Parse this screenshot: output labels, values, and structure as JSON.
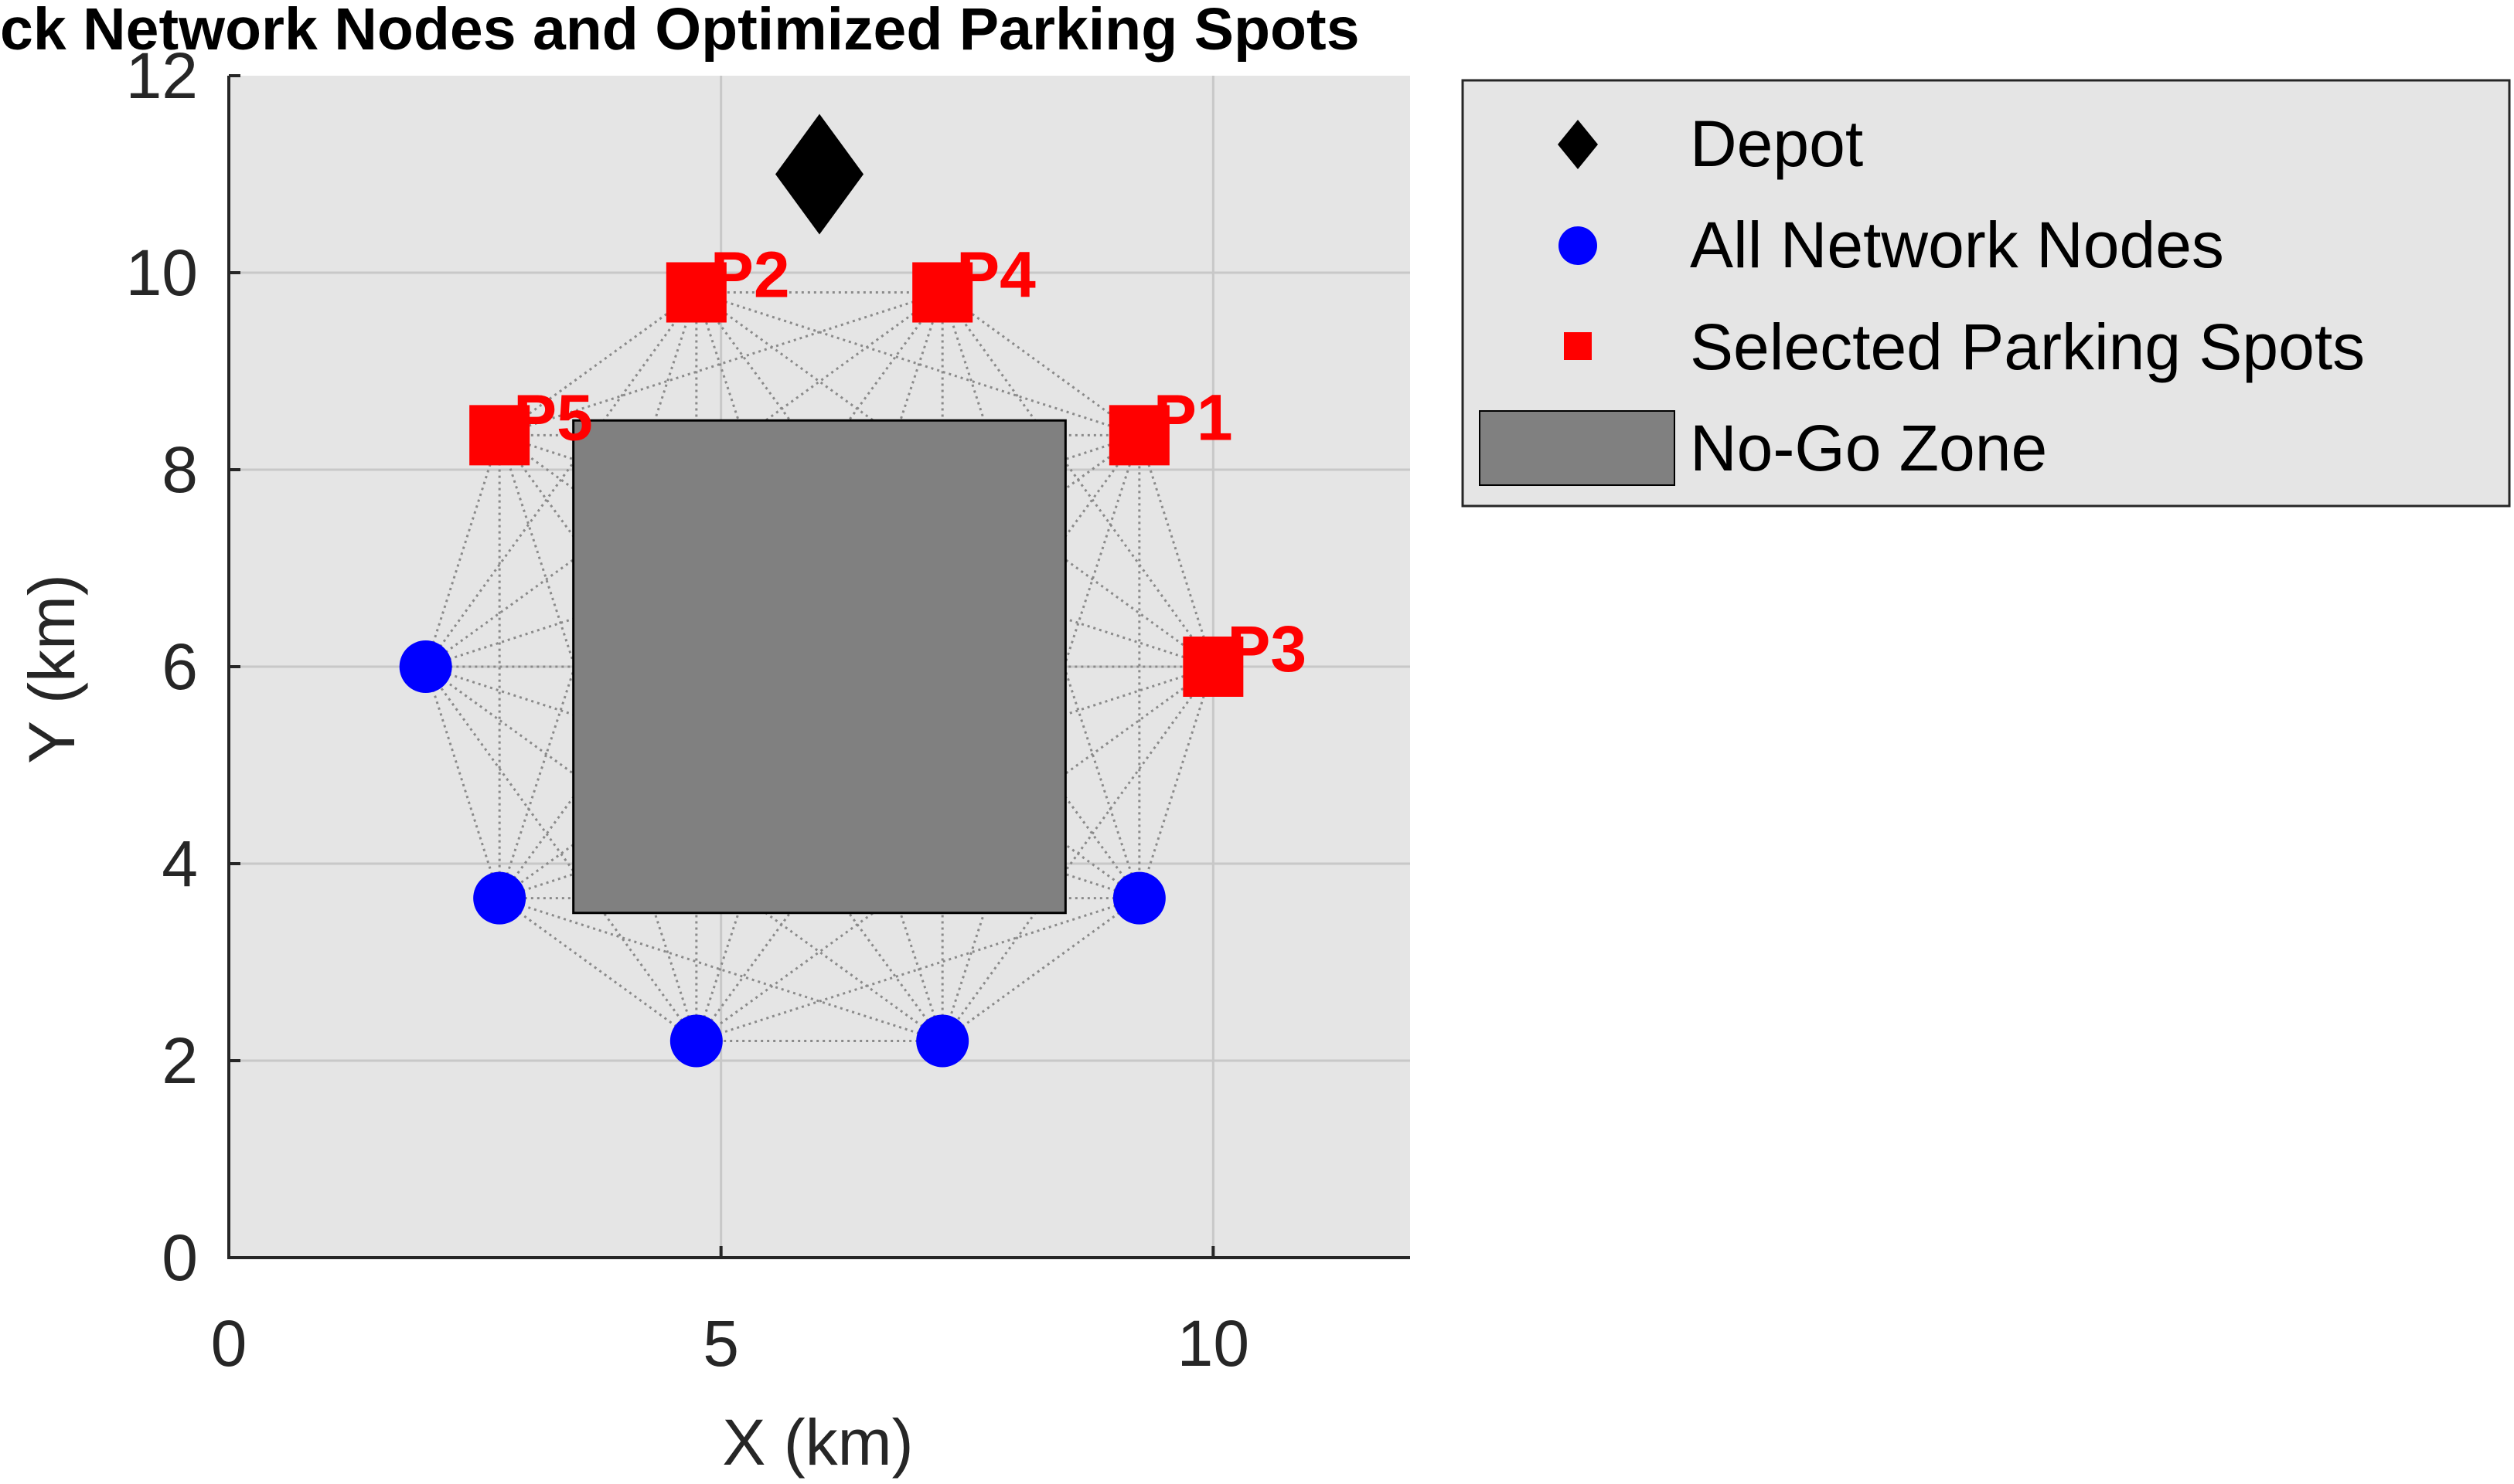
{
  "chart_data": {
    "type": "scatter",
    "title": "ck Network Nodes and Optimized Parking Spots",
    "xlabel": "X (km)",
    "ylabel": "Y (km)",
    "xlim": [
      0,
      12
    ],
    "ylim": [
      0,
      12
    ],
    "xticks": [
      0,
      5,
      10
    ],
    "yticks": [
      0,
      2,
      4,
      6,
      8,
      10,
      12
    ],
    "grid": true,
    "legend_position": "outside-top-right",
    "depot": {
      "x": 6.0,
      "y": 11.0
    },
    "network_nodes": [
      {
        "x": 9.25,
        "y": 8.35
      },
      {
        "x": 10.0,
        "y": 6.0
      },
      {
        "x": 9.25,
        "y": 3.65
      },
      {
        "x": 7.25,
        "y": 2.2
      },
      {
        "x": 4.75,
        "y": 2.2
      },
      {
        "x": 2.75,
        "y": 3.65
      },
      {
        "x": 2.0,
        "y": 6.0
      },
      {
        "x": 2.75,
        "y": 8.35
      },
      {
        "x": 4.75,
        "y": 9.8
      },
      {
        "x": 7.25,
        "y": 9.8
      }
    ],
    "parking_spots": [
      {
        "label": "P1",
        "x": 9.25,
        "y": 8.35
      },
      {
        "label": "P2",
        "x": 4.75,
        "y": 9.8
      },
      {
        "label": "P3",
        "x": 10.0,
        "y": 6.0
      },
      {
        "label": "P4",
        "x": 7.25,
        "y": 9.8
      },
      {
        "label": "P5",
        "x": 2.75,
        "y": 8.35
      }
    ],
    "no_go_zone": {
      "x": [
        3.5,
        8.5
      ],
      "y": [
        3.5,
        8.5
      ]
    },
    "legend": [
      "Depot",
      "All Network Nodes",
      "Selected Parking Spots",
      "No-Go Zone"
    ],
    "colors": {
      "axes_background": "#e5e5e5",
      "grid": "#c8c8c8",
      "edges": "#8a8a8a",
      "depot": "#000000",
      "nodes": "#0000ff",
      "parking": "#ff0000",
      "no_go_zone": "#808080"
    }
  }
}
